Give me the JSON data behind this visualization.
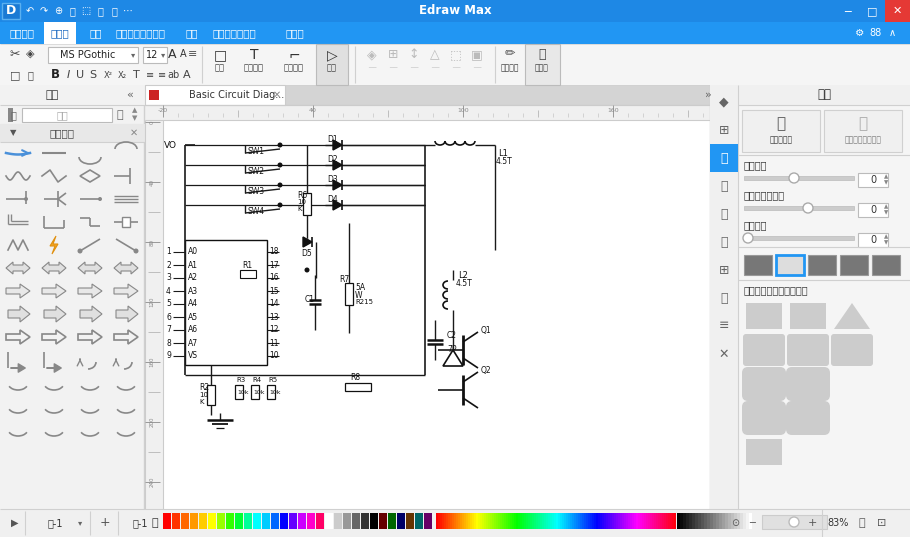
{
  "title": "Edraw Max",
  "titlebar_color": "#1e88e5",
  "menubar_color": "#2196f3",
  "toolbar_color": "#f5f5f5",
  "left_panel_color": "#f2f2f2",
  "right_panel_color": "#f2f2f2",
  "canvas_color": "#ffffff",
  "status_bar_color": "#f0f0f0",
  "menu_items": [
    "ファイル",
    "ホーム",
    "挿入",
    "ページレイアウト",
    "表示",
    "図形のデザイン",
    "ヘルプ"
  ],
  "active_menu": "ホーム",
  "tab_label": "Basic Circuit Diag...",
  "left_panel_title": "図形",
  "right_panel_title": "画像",
  "connector_label": "コネクタ",
  "brightness_label": "明るさ：",
  "contrast_label": "コントラスト：",
  "transparency_label": "透過性：",
  "insert_image_label": "画像を挿入",
  "change_image_label": "画像を変更します",
  "clip_label": "定義済みのクリッピング",
  "zoom_pct": "83%",
  "page_label": "頁-1",
  "page_label2": "頁-1"
}
